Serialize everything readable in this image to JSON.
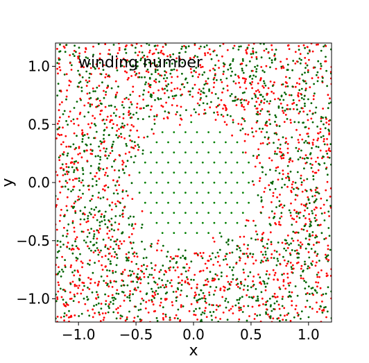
{
  "chart_data": {
    "type": "scatter",
    "title": "",
    "annotation": "winding number",
    "xlabel": "x",
    "ylabel": "y",
    "xlim": [
      -1.2,
      1.2
    ],
    "ylim": [
      -1.2,
      1.2
    ],
    "xticks": [
      -1.0,
      -0.5,
      0.0,
      0.5,
      1.0
    ],
    "yticks": [
      -1.0,
      -0.5,
      0.0,
      0.5,
      1.0
    ],
    "xtick_labels": [
      "−1.0",
      "−0.5",
      "0.0",
      "0.5",
      "1.0"
    ],
    "ytick_labels": [
      "−1.0",
      "−0.5",
      "0.0",
      "0.5",
      "1.0"
    ],
    "grid": false,
    "series": [
      {
        "color": "#ff0000",
        "region": "outside",
        "inner_radius": 0.55,
        "outer_extent": 1.2,
        "density": "dense"
      },
      {
        "color": "#006400",
        "region": "outside",
        "inner_radius": 0.55,
        "outer_extent": 1.2,
        "density": "dense"
      },
      {
        "color": "#008000",
        "region": "inside",
        "radius": 0.52,
        "density": "sparse grid"
      }
    ]
  }
}
